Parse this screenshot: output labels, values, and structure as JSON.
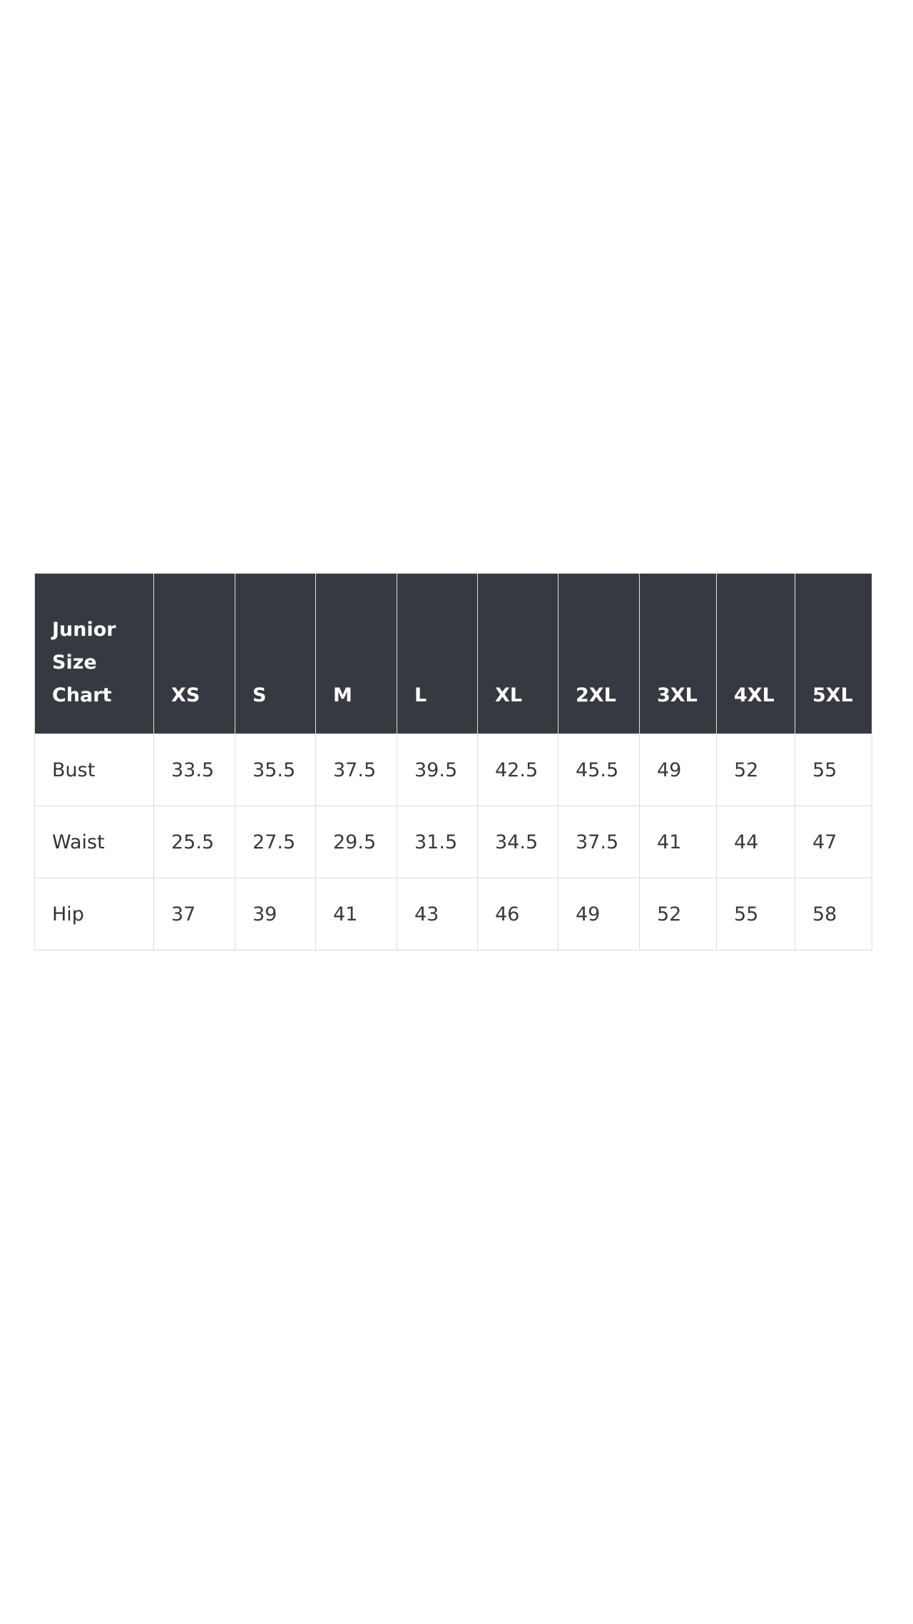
{
  "table": {
    "corner_lines": [
      "Junior",
      "Size",
      "Chart"
    ],
    "sizes": [
      "XS",
      "S",
      "M",
      "L",
      "XL",
      "2XL",
      "3XL",
      "4XL",
      "5XL"
    ],
    "rows": [
      {
        "label": "Bust",
        "values": [
          "33.5",
          "35.5",
          "37.5",
          "39.5",
          "42.5",
          "45.5",
          "49",
          "52",
          "55"
        ]
      },
      {
        "label": "Waist",
        "values": [
          "25.5",
          "27.5",
          "29.5",
          "31.5",
          "34.5",
          "37.5",
          "41",
          "44",
          "47"
        ]
      },
      {
        "label": "Hip",
        "values": [
          "37",
          "39",
          "41",
          "43",
          "46",
          "49",
          "52",
          "55",
          "58"
        ]
      }
    ]
  },
  "colors": {
    "header_bg": "#363a40",
    "header_text": "#ffffff",
    "border": "#dcdcdc"
  }
}
